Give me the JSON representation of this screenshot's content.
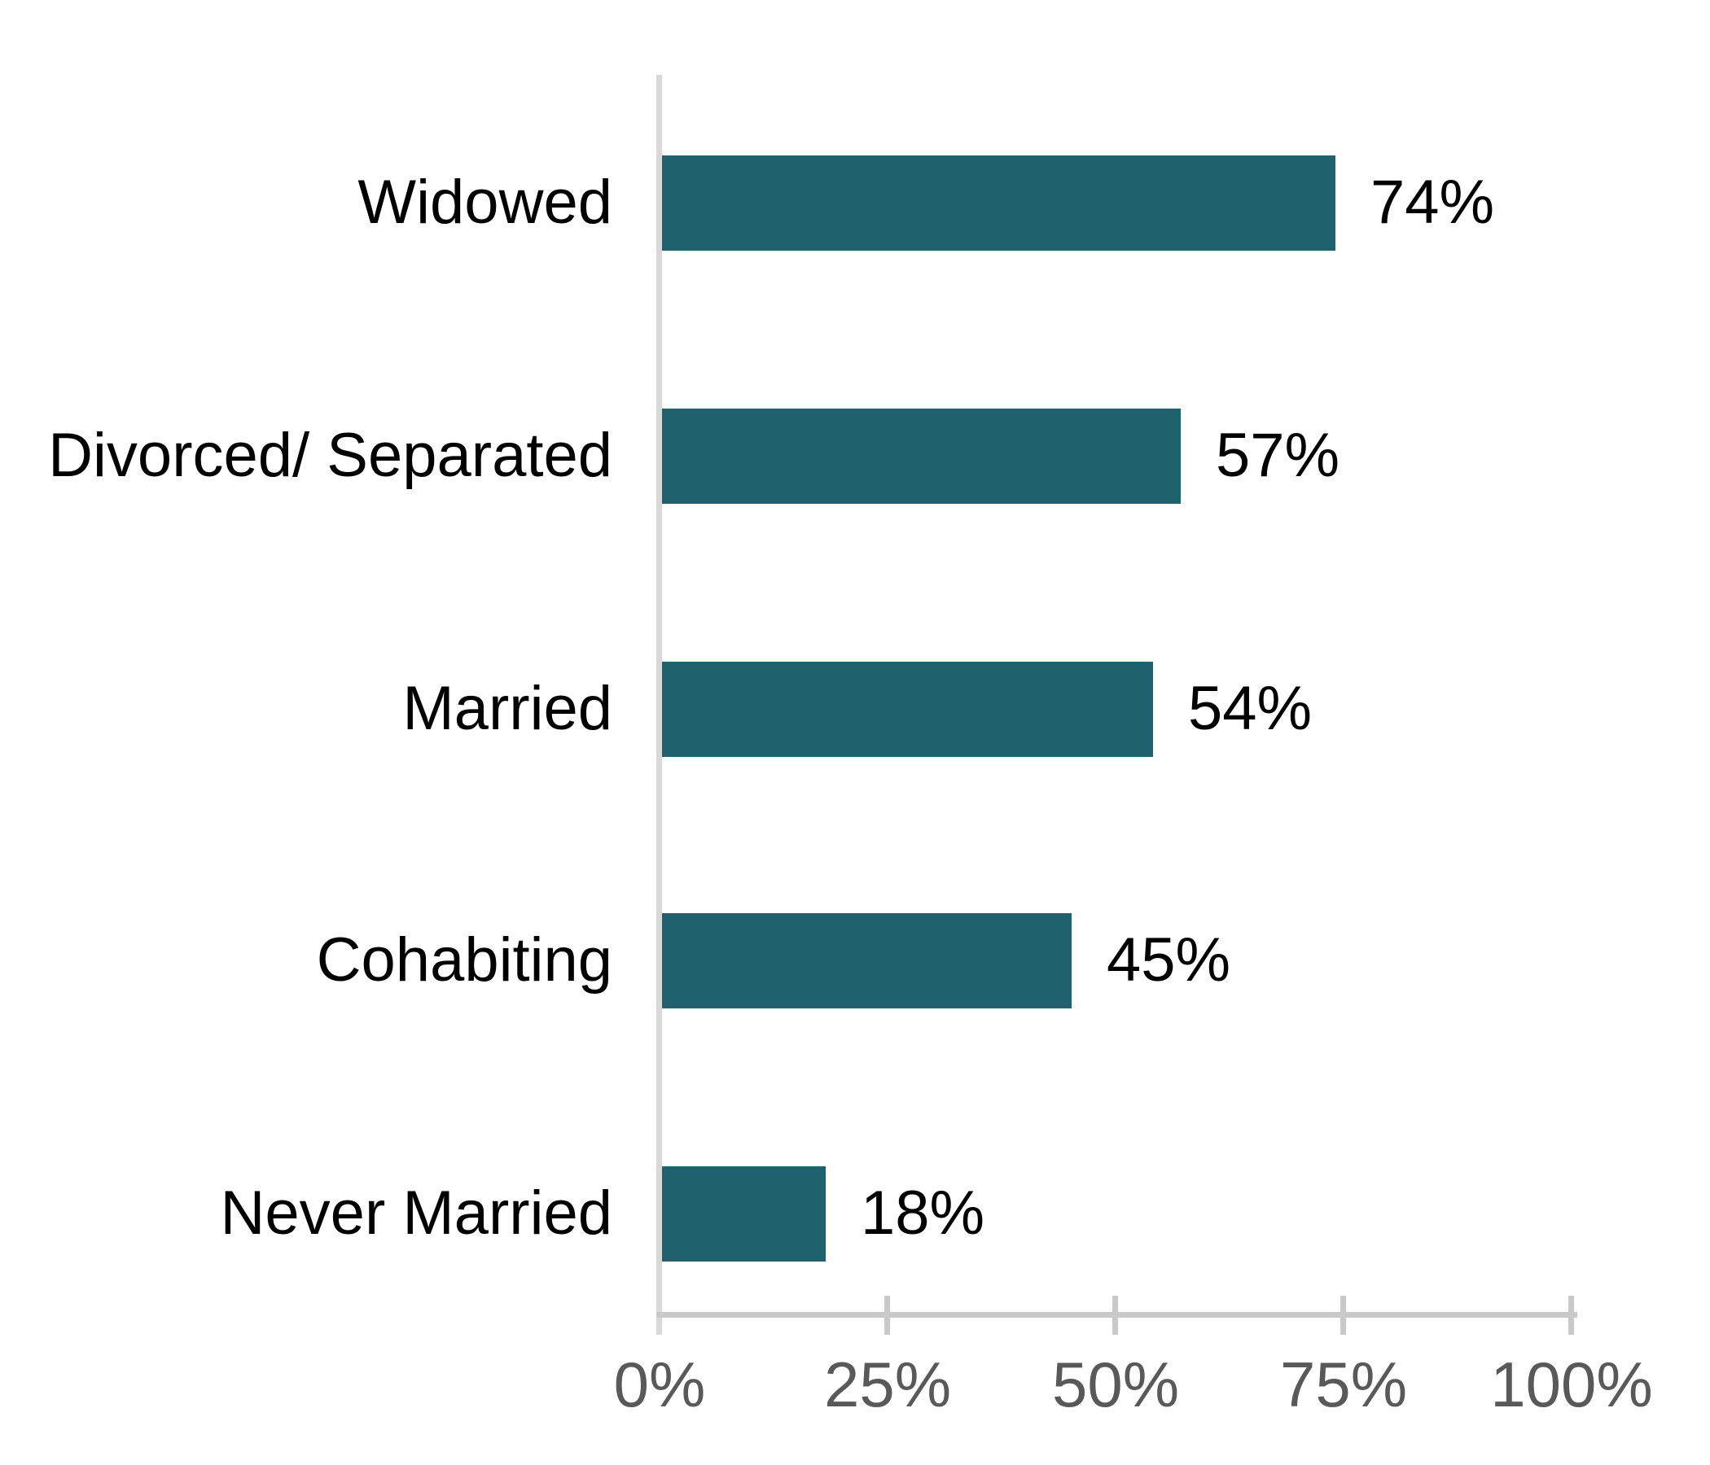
{
  "chart_data": {
    "type": "bar",
    "orientation": "horizontal",
    "title": "",
    "categories": [
      "Widowed",
      "Divorced/ Separated",
      "Married",
      "Cohabiting",
      "Never Married"
    ],
    "values": [
      74,
      57,
      54,
      45,
      18
    ],
    "value_labels": [
      "74%",
      "57%",
      "54%",
      "45%",
      "18%"
    ],
    "xlabel": "",
    "ylabel": "",
    "xlim": [
      0,
      100
    ],
    "x_tick_values": [
      0,
      25,
      50,
      75,
      100
    ],
    "x_tick_labels": [
      "0%",
      "25%",
      "50%",
      "75%",
      "100%"
    ],
    "grid": "off",
    "legend": "none",
    "colors": {
      "bar": "#1E626D",
      "category_label": "#000000",
      "value_label": "#000000",
      "tick_label": "#595959",
      "vertical_axis_line": "#D9D9D9",
      "horizontal_axis_line": "#C9C9C9"
    }
  }
}
